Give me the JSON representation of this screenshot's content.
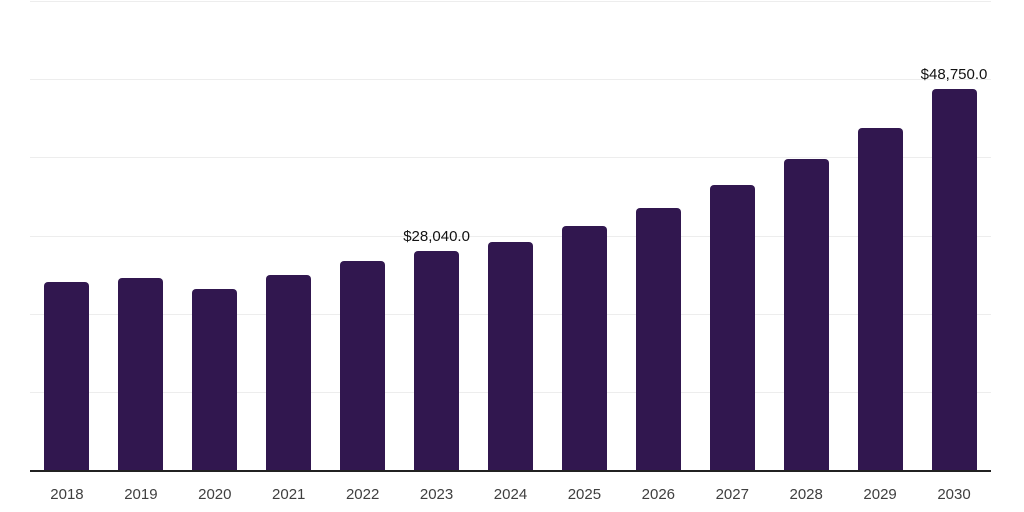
{
  "chart_data": {
    "type": "bar",
    "title": "",
    "xlabel": "",
    "ylabel": "",
    "categories": [
      "2018",
      "2019",
      "2020",
      "2021",
      "2022",
      "2023",
      "2024",
      "2025",
      "2026",
      "2027",
      "2028",
      "2029",
      "2030"
    ],
    "values": [
      24000,
      24600,
      23200,
      25000,
      26800,
      28040,
      29200,
      31200,
      33500,
      36400,
      39750,
      43800,
      48750
    ],
    "point_labels": [
      "",
      "",
      "",
      "",
      "",
      "$28,040.0",
      "",
      "",
      "",
      "",
      "",
      "",
      "$48,750.0"
    ],
    "ylim": [
      0,
      60000
    ],
    "gridline_step": 10000,
    "grid": "horizontal",
    "legend_position": "none",
    "y_axis_tick_labels": "none",
    "colors": {
      "bar": "#31174f",
      "gridline": "#ededed",
      "axis_line": "#212121",
      "category_label": "#3f3f3f",
      "point_label": "#121212",
      "background": "#ffffff"
    }
  }
}
